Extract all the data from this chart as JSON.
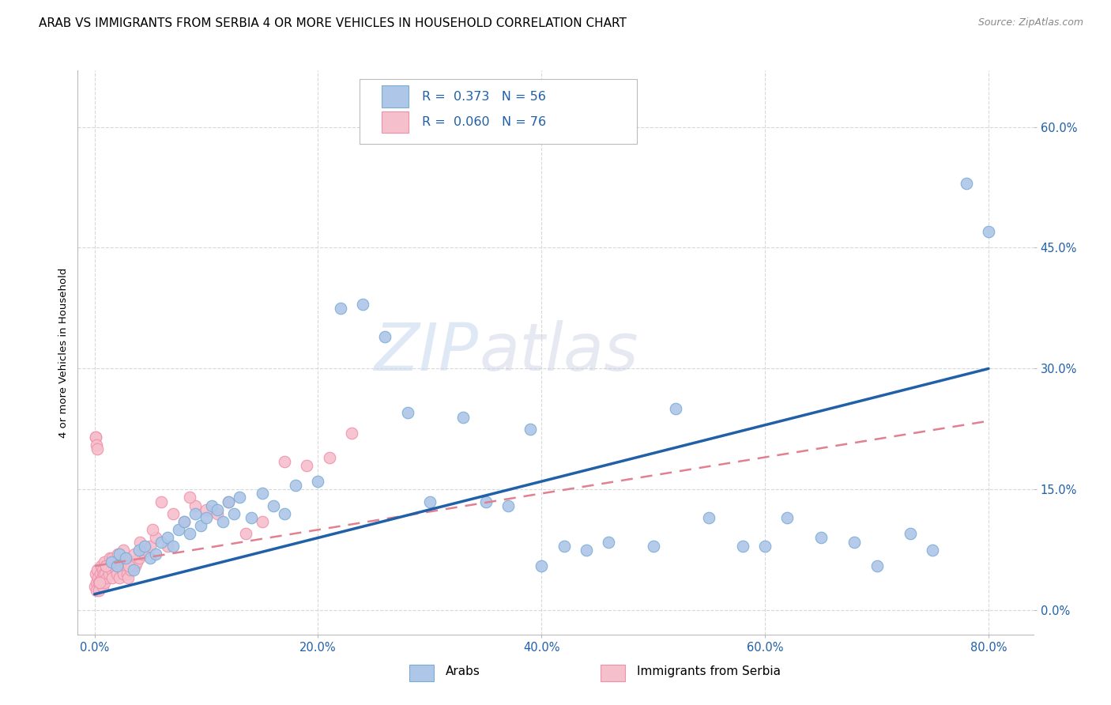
{
  "title": "ARAB VS IMMIGRANTS FROM SERBIA 4 OR MORE VEHICLES IN HOUSEHOLD CORRELATION CHART",
  "source": "Source: ZipAtlas.com",
  "xlabel_ticks": [
    "0.0%",
    "20.0%",
    "40.0%",
    "60.0%",
    "80.0%"
  ],
  "xlabel_vals": [
    0,
    20,
    40,
    60,
    80
  ],
  "ylabel_ticks": [
    "0.0%",
    "15.0%",
    "30.0%",
    "45.0%",
    "60.0%"
  ],
  "ylabel_vals": [
    0,
    15,
    30,
    45,
    60
  ],
  "ylabel_label": "4 or more Vehicles in Household",
  "xlim": [
    -1.5,
    84
  ],
  "ylim": [
    -3,
    67
  ],
  "arab_color": "#aec6e8",
  "arab_edge_color": "#7aadd4",
  "serbia_color": "#f5bfcc",
  "serbia_edge_color": "#f090aa",
  "trend_arab_color": "#2060a8",
  "trend_serbia_color": "#e08090",
  "arab_label": "Arabs",
  "serbia_label": "Immigrants from Serbia",
  "watermark_zip": "ZIP",
  "watermark_atlas": "atlas",
  "background_color": "#ffffff",
  "grid_color": "#d8d8d8",
  "title_fontsize": 11,
  "axis_label_fontsize": 9.5,
  "tick_fontsize": 10.5,
  "source_fontsize": 9,
  "legend_text_color": "#2060a8",
  "arab_x": [
    1.5,
    2.0,
    2.2,
    2.8,
    3.5,
    4.0,
    4.5,
    5.0,
    5.5,
    6.0,
    6.5,
    7.0,
    7.5,
    8.0,
    8.5,
    9.0,
    9.5,
    10.0,
    10.5,
    11.0,
    11.5,
    12.0,
    12.5,
    13.0,
    14.0,
    15.0,
    16.0,
    17.0,
    18.0,
    20.0,
    22.0,
    24.0,
    26.0,
    28.0,
    30.0,
    33.0,
    35.0,
    37.0,
    39.0,
    40.0,
    42.0,
    44.0,
    46.0,
    50.0,
    52.0,
    55.0,
    58.0,
    60.0,
    62.0,
    65.0,
    68.0,
    70.0,
    73.0,
    75.0,
    78.0,
    80.0
  ],
  "arab_y": [
    6.0,
    5.5,
    7.0,
    6.5,
    5.0,
    7.5,
    8.0,
    6.5,
    7.0,
    8.5,
    9.0,
    8.0,
    10.0,
    11.0,
    9.5,
    12.0,
    10.5,
    11.5,
    13.0,
    12.5,
    11.0,
    13.5,
    12.0,
    14.0,
    11.5,
    14.5,
    13.0,
    12.0,
    15.5,
    16.0,
    37.5,
    38.0,
    34.0,
    24.5,
    13.5,
    24.0,
    13.5,
    13.0,
    22.5,
    5.5,
    8.0,
    7.5,
    8.5,
    8.0,
    25.0,
    11.5,
    8.0,
    8.0,
    11.5,
    9.0,
    8.5,
    5.5,
    9.5,
    7.5,
    53.0,
    47.0
  ],
  "serbia_x": [
    0.05,
    0.1,
    0.15,
    0.2,
    0.25,
    0.3,
    0.35,
    0.4,
    0.5,
    0.55,
    0.6,
    0.65,
    0.7,
    0.75,
    0.8,
    0.85,
    0.9,
    0.95,
    1.0,
    1.1,
    1.2,
    1.3,
    1.4,
    1.5,
    1.6,
    1.7,
    1.8,
    1.9,
    2.0,
    2.1,
    2.2,
    2.3,
    2.4,
    2.5,
    2.6,
    2.7,
    2.8,
    2.9,
    3.0,
    3.2,
    3.4,
    3.6,
    3.8,
    4.0,
    4.3,
    4.6,
    5.0,
    5.5,
    6.0,
    7.0,
    8.0,
    9.0,
    10.0,
    11.0,
    12.0,
    13.5,
    15.0,
    17.0,
    19.0,
    21.0,
    23.0,
    0.45,
    1.05,
    1.55,
    2.05,
    2.55,
    3.05,
    3.55,
    4.05,
    5.2,
    6.5,
    8.5,
    0.08,
    0.12,
    0.18,
    0.22
  ],
  "serbia_y": [
    3.0,
    4.5,
    3.5,
    2.5,
    5.0,
    4.0,
    3.5,
    2.5,
    4.5,
    3.5,
    5.5,
    4.0,
    3.0,
    5.0,
    4.5,
    3.5,
    6.0,
    4.5,
    5.5,
    4.0,
    5.5,
    4.5,
    6.5,
    5.0,
    4.0,
    5.5,
    6.5,
    5.0,
    4.5,
    5.5,
    4.0,
    5.5,
    6.5,
    5.0,
    4.5,
    6.0,
    5.5,
    4.5,
    4.0,
    5.0,
    6.0,
    5.5,
    6.0,
    6.5,
    7.0,
    7.5,
    8.0,
    9.0,
    13.5,
    12.0,
    11.0,
    13.0,
    12.5,
    12.0,
    13.5,
    9.5,
    11.0,
    18.5,
    18.0,
    19.0,
    22.0,
    3.5,
    5.5,
    6.5,
    7.0,
    7.5,
    5.5,
    7.0,
    8.5,
    10.0,
    8.0,
    14.0,
    21.5,
    21.5,
    20.5,
    20.0
  ],
  "arab_trend_x0": 0,
  "arab_trend_y0": 2.0,
  "arab_trend_x1": 80,
  "arab_trend_y1": 30.0,
  "serbia_trend_x0": 0,
  "serbia_trend_y0": 5.5,
  "serbia_trend_x1": 80,
  "serbia_trend_y1": 23.5
}
